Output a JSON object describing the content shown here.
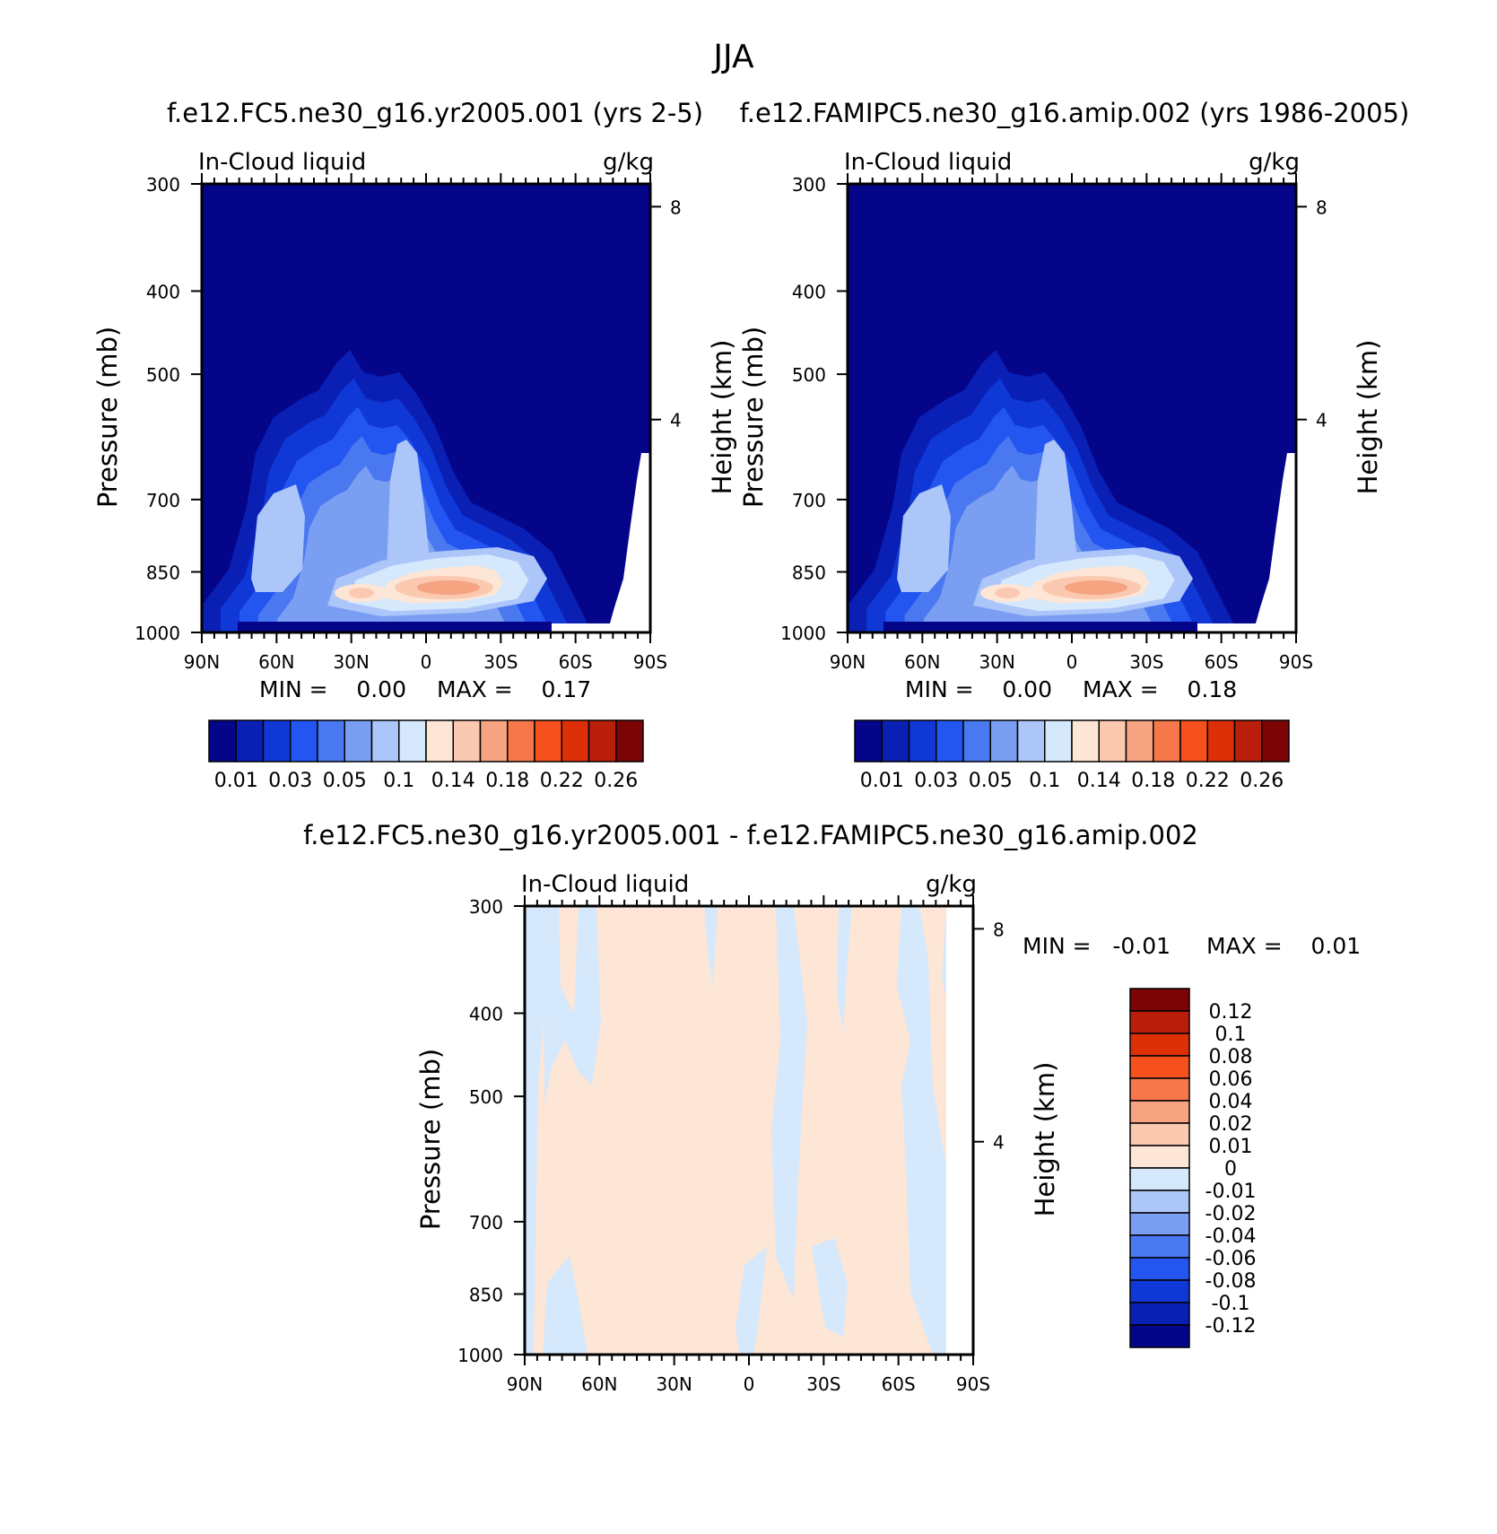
{
  "page_title": "JJA",
  "panels": [
    {
      "title": "f.e12.FC5.ne30_g16.yr2005.001 (yrs 2-5)",
      "left_label": "In-Cloud liquid",
      "right_label": "g/kg",
      "min_text": "MIN =    0.00",
      "max_text": "MAX =    0.17"
    },
    {
      "title": "f.e12.FAMIPC5.ne30_g16.amip.002 (yrs 1986-2005)",
      "left_label": "In-Cloud liquid",
      "right_label": "g/kg",
      "min_text": "MIN =    0.00",
      "max_text": "MAX =    0.18"
    },
    {
      "title": "f.e12.FC5.ne30_g16.yr2005.001 - f.e12.FAMIPC5.ne30_g16.amip.002",
      "left_label": "In-Cloud liquid",
      "right_label": "g/kg",
      "min_text": "MIN =   -0.01",
      "max_text": "MAX =    0.01"
    }
  ],
  "axes": {
    "ylabel": "Pressure (mb)",
    "y2label": "Height (km)",
    "pressure_ticks": [
      "300",
      "400",
      "500",
      "700",
      "850",
      "1000"
    ],
    "height_ticks": [
      "8",
      "4"
    ],
    "lat_ticks": [
      "90N",
      "60N",
      "30N",
      "0",
      "30S",
      "60S",
      "90S"
    ]
  },
  "colorbars": {
    "field_labels": [
      "0.01",
      "0.03",
      "0.05",
      "0.1",
      "0.14",
      "0.18",
      "0.22",
      "0.26"
    ],
    "diff_labels": [
      "0.12",
      "0.1",
      "0.08",
      "0.06",
      "0.04",
      "0.02",
      "0.01",
      "0",
      "-0.01",
      "-0.02",
      "-0.04",
      "-0.06",
      "-0.08",
      "-0.1",
      "-0.12"
    ],
    "field_colors": [
      "#05058a",
      "#0a20b4",
      "#1038d6",
      "#2356f0",
      "#4a78f0",
      "#7a9ef2",
      "#adc6fa",
      "#d6e8fc",
      "#fde6d6",
      "#fbc8b0",
      "#f6a382",
      "#f6784a",
      "#f5501e",
      "#de3008",
      "#b81e0a",
      "#7c0404"
    ],
    "diff_colors": [
      "#05058a",
      "#0a20b4",
      "#1038d6",
      "#2356f0",
      "#4a78f0",
      "#7a9ef2",
      "#adc6fa",
      "#d6e8fc",
      "#fde6d6",
      "#fbc8b0",
      "#f6a382",
      "#f6784a",
      "#f5501e",
      "#de3008",
      "#b81e0a",
      "#7c0404"
    ]
  },
  "chart_data": [
    {
      "type": "heatmap",
      "title": "f.e12.FC5.ne30_g16.yr2005.001 (yrs 2-5)",
      "xlabel": "",
      "ylabel": "Pressure (mb)",
      "y2label": "Height (km)",
      "units": "g/kg",
      "variable": "In-Cloud liquid",
      "x": [
        "90N",
        "60N",
        "30N",
        "0",
        "30S",
        "60S",
        "90S"
      ],
      "ylim": [
        1000,
        300
      ],
      "min": 0.0,
      "max": 0.17
    },
    {
      "type": "heatmap",
      "title": "f.e12.FAMIPC5.ne30_g16.amip.002 (yrs 1986-2005)",
      "xlabel": "",
      "ylabel": "Pressure (mb)",
      "y2label": "Height (km)",
      "units": "g/kg",
      "variable": "In-Cloud liquid",
      "x": [
        "90N",
        "60N",
        "30N",
        "0",
        "30S",
        "60S",
        "90S"
      ],
      "ylim": [
        1000,
        300
      ],
      "min": 0.0,
      "max": 0.18
    },
    {
      "type": "heatmap",
      "title": "f.e12.FC5.ne30_g16.yr2005.001 - f.e12.FAMIPC5.ne30_g16.amip.002",
      "xlabel": "",
      "ylabel": "Pressure (mb)",
      "y2label": "Height (km)",
      "units": "g/kg",
      "variable": "In-Cloud liquid",
      "x": [
        "90N",
        "60N",
        "30N",
        "0",
        "30S",
        "60S",
        "90S"
      ],
      "ylim": [
        1000,
        300
      ],
      "min": -0.01,
      "max": 0.01
    }
  ]
}
